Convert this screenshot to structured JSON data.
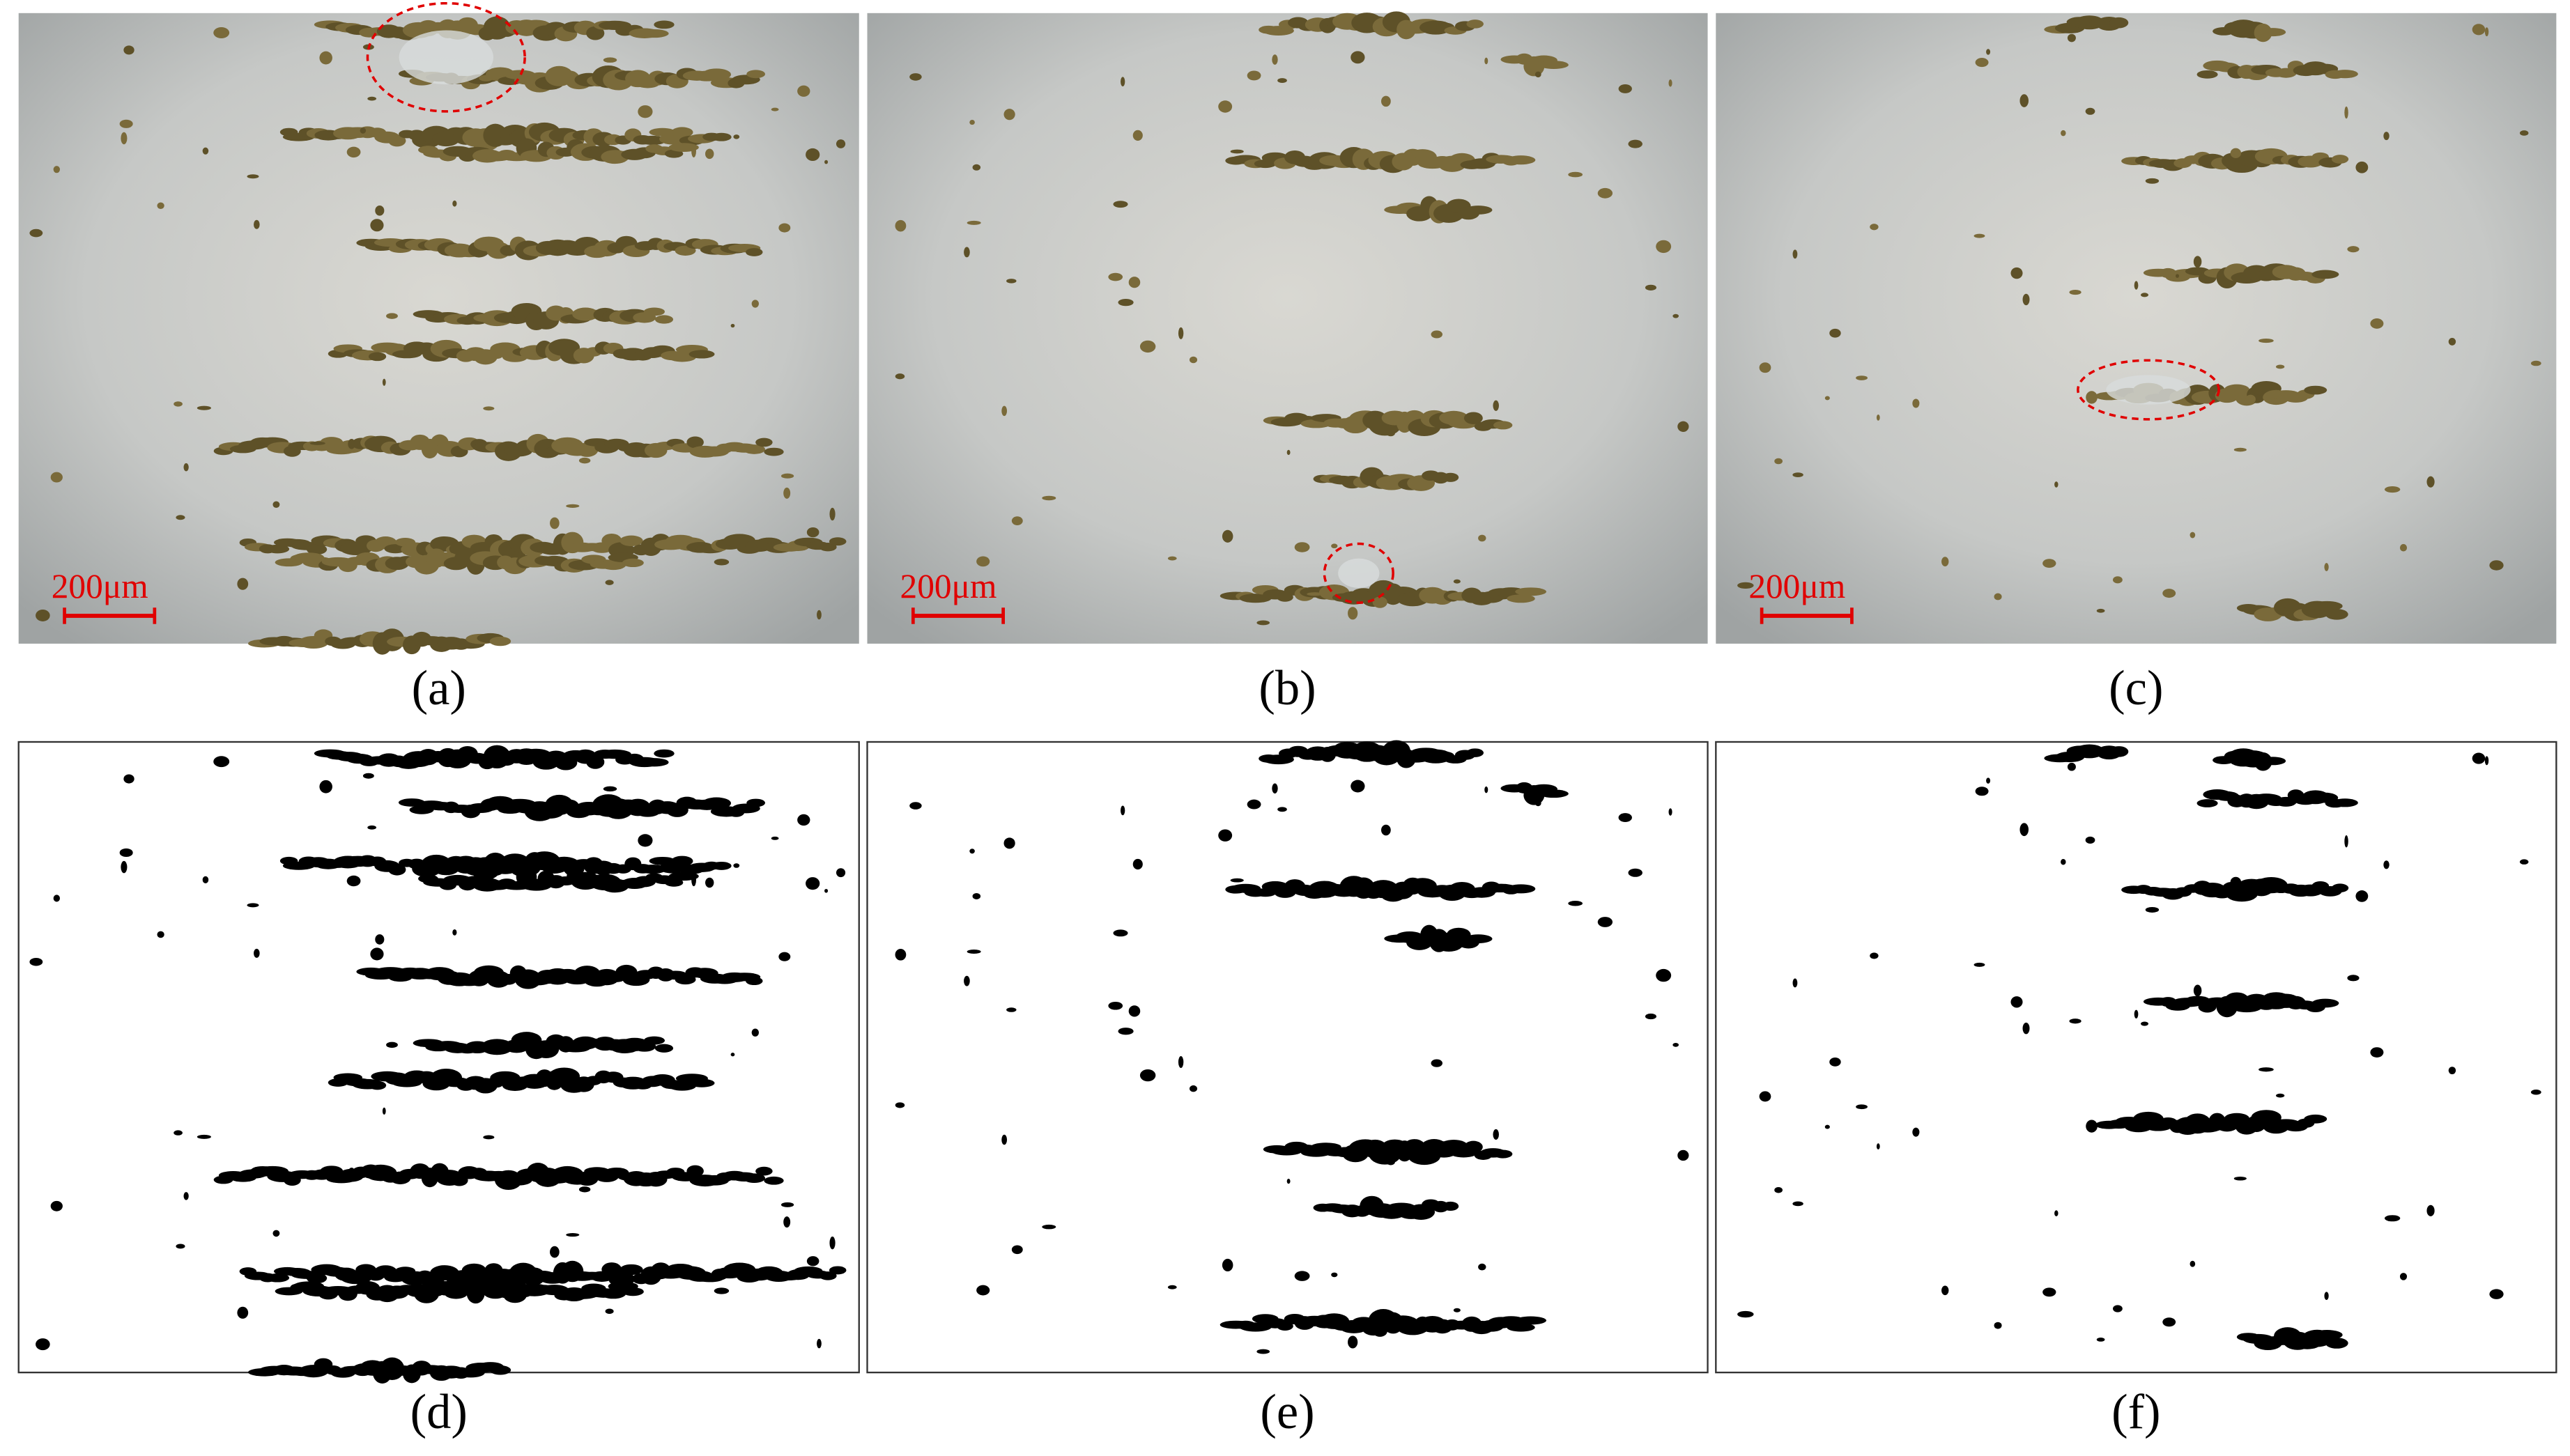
{
  "figure": {
    "panels": [
      {
        "label": "(a)",
        "scale_bar": "200μm"
      },
      {
        "label": "(b)",
        "scale_bar": "200μm"
      },
      {
        "label": "(c)",
        "scale_bar": "200μm"
      },
      {
        "label": "(d)"
      },
      {
        "label": "(e)"
      },
      {
        "label": "(f)"
      }
    ]
  }
}
